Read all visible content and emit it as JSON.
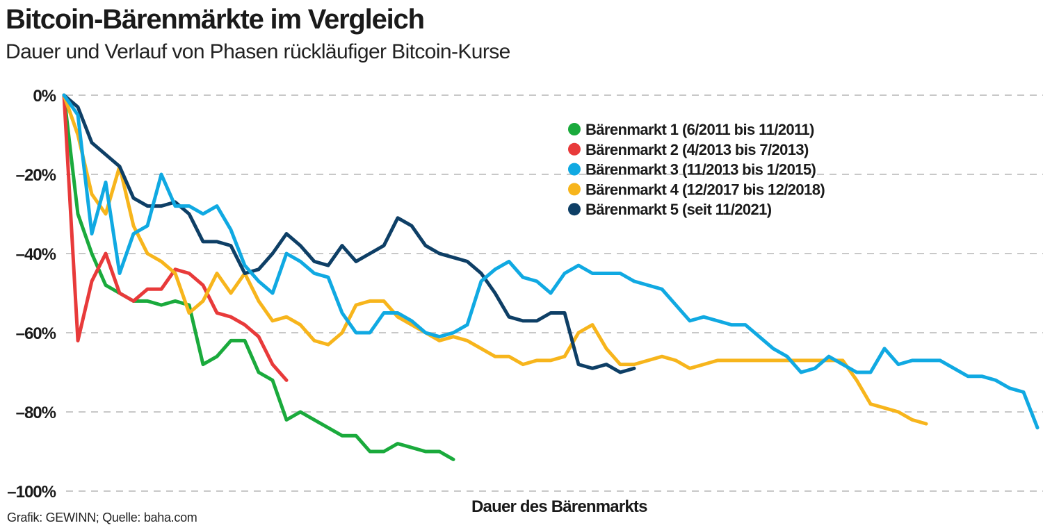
{
  "chart_data": {
    "type": "line",
    "title": "Bitcoin-Bärenmärkte im Vergleich",
    "subtitle": "Dauer und Verlauf von Phasen rückläufiger Bitcoin-Kurse",
    "xlabel": "Dauer des Bärenmarkts",
    "ylabel": "",
    "ylim": [
      -100,
      0
    ],
    "yticks": [
      0,
      -20,
      -40,
      -60,
      -80,
      -100
    ],
    "ytick_labels": [
      "0%",
      "–20%",
      "–40%",
      "–60%",
      "–80%",
      "–100%"
    ],
    "grid": "horizontal dashed",
    "legend_position": "top-right",
    "source": "Grafik: GEWINN; Quelle: baha.com",
    "series": [
      {
        "name": "Bärenmarkt 1 (6/2011 bis 11/2011)",
        "color": "#1aaa3c",
        "values": [
          0,
          -30,
          -40,
          -48,
          -50,
          -52,
          -52,
          -53,
          -52,
          -53,
          -68,
          -66,
          -62,
          -62,
          -70,
          -72,
          -82,
          -80,
          -82,
          -84,
          -86,
          -86,
          -90,
          -90,
          -88,
          -89,
          -90,
          -90,
          -92
        ]
      },
      {
        "name": "Bärenmarkt 2 (4/2013 bis 7/2013)",
        "color": "#e83a3a",
        "values": [
          0,
          -62,
          -47,
          -40,
          -50,
          -52,
          -49,
          -49,
          -44,
          -45,
          -48,
          -55,
          -56,
          -58,
          -61,
          -68,
          -72
        ]
      },
      {
        "name": "Bärenmarkt 3 (11/2013 bis 1/2015)",
        "color": "#10a9e2",
        "values": [
          0,
          -5,
          -35,
          -22,
          -45,
          -35,
          -33,
          -20,
          -28,
          -28,
          -30,
          -28,
          -34,
          -43,
          -47,
          -50,
          -40,
          -42,
          -45,
          -46,
          -55,
          -60,
          -60,
          -55,
          -55,
          -57,
          -60,
          -61,
          -60,
          -58,
          -47,
          -44,
          -42,
          -46,
          -47,
          -50,
          -45,
          -43,
          -45,
          -45,
          -45,
          -47,
          -48,
          -49,
          -53,
          -57,
          -56,
          -57,
          -58,
          -58,
          -61,
          -64,
          -66,
          -70,
          -69,
          -66,
          -68,
          -70,
          -70,
          -64,
          -68,
          -67,
          -67,
          -67,
          -69,
          -71,
          -71,
          -72,
          -74,
          -75,
          -84
        ]
      },
      {
        "name": "Bärenmarkt 4 (12/2017 bis 12/2018)",
        "color": "#f7b51c",
        "values": [
          0,
          -10,
          -25,
          -30,
          -18,
          -33,
          -40,
          -42,
          -45,
          -55,
          -52,
          -45,
          -50,
          -45,
          -52,
          -57,
          -56,
          -58,
          -62,
          -63,
          -60,
          -53,
          -52,
          -52,
          -56,
          -58,
          -60,
          -62,
          -61,
          -62,
          -64,
          -66,
          -66,
          -68,
          -67,
          -67,
          -66,
          -60,
          -58,
          -64,
          -68,
          -68,
          -67,
          -66,
          -67,
          -69,
          -68,
          -67,
          -67,
          -67,
          -67,
          -67,
          -67,
          -67,
          -67,
          -67,
          -67,
          -72,
          -78,
          -79,
          -80,
          -82,
          -83
        ]
      },
      {
        "name": "Bärenmarkt 5 (seit 11/2021)",
        "color": "#0e3f66",
        "values": [
          0,
          -3,
          -12,
          -15,
          -18,
          -26,
          -28,
          -28,
          -27,
          -30,
          -37,
          -37,
          -38,
          -45,
          -44,
          -40,
          -35,
          -38,
          -42,
          -43,
          -38,
          -42,
          -40,
          -38,
          -31,
          -33,
          -38,
          -40,
          -41,
          -42,
          -45,
          -50,
          -56,
          -57,
          -57,
          -55,
          -55,
          -68,
          -69,
          -68,
          -70,
          -69
        ]
      }
    ]
  }
}
